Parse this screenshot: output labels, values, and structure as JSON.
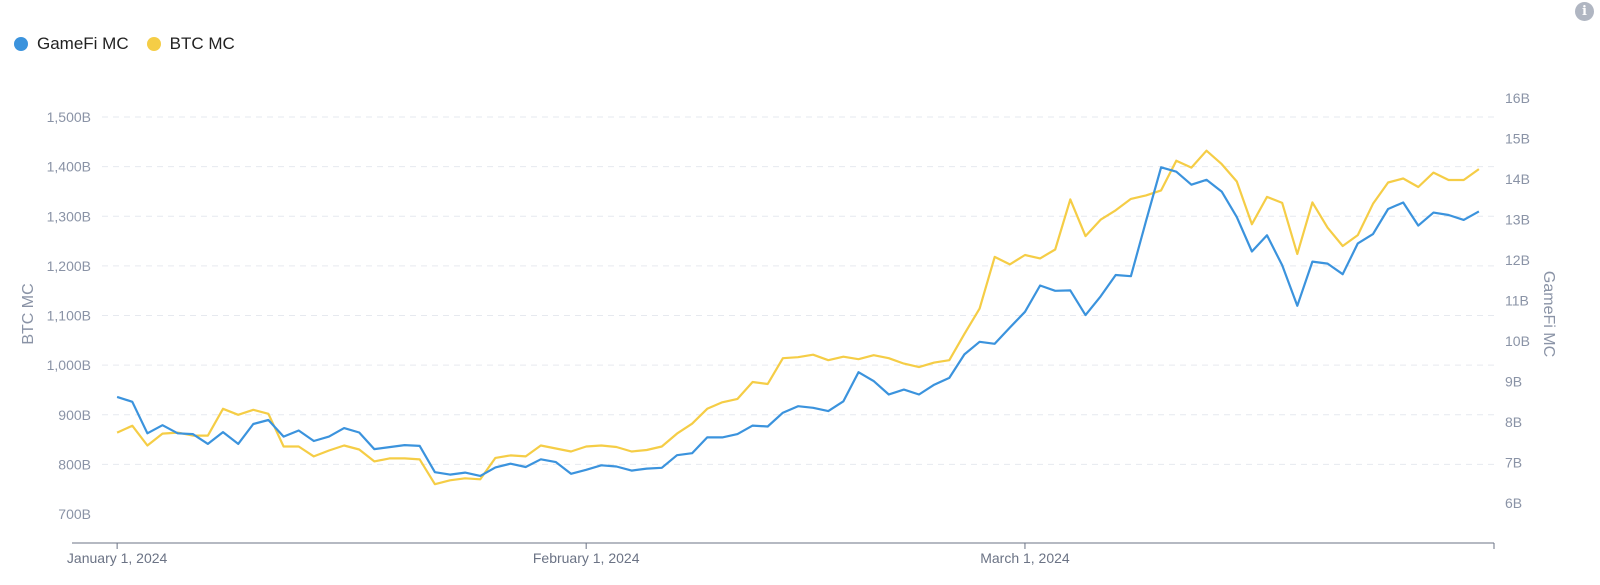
{
  "legend": {
    "gamefi": "GameFi MC",
    "btc": "BTC MC"
  },
  "colors": {
    "gamefi": "#3b93dd",
    "btc": "#f5cd46"
  },
  "icons": {
    "info": "info-icon"
  },
  "chart_data": {
    "type": "line",
    "x_tick_labels": [
      "January 1, 2024",
      "February 1, 2024",
      "March 1, 2024"
    ],
    "x_tick_dates": [
      "2024-01-01",
      "2024-02-01",
      "2024-03-01"
    ],
    "x_start": "2023-12-31",
    "x_end": "2024-04-01",
    "y_left": {
      "label": "BTC MC",
      "ticks": [
        "700B",
        "800B",
        "900B",
        "1,000B",
        "1,100B",
        "1,200B",
        "1,300B",
        "1,400B",
        "1,500B"
      ],
      "range": [
        700,
        1500
      ],
      "unit": "B"
    },
    "y_right": {
      "label": "GameFi MC",
      "ticks": [
        "6B",
        "7B",
        "8B",
        "9B",
        "10B",
        "11B",
        "12B",
        "13B",
        "14B",
        "15B",
        "16B"
      ],
      "range": [
        6,
        16
      ],
      "unit": "B"
    },
    "grid": "horizontal dashed",
    "legend_position": "top-left",
    "series": [
      {
        "name": "GameFi MC",
        "axis": "right",
        "color": "#3b93dd",
        "values": [
          8.62,
          8.5,
          7.72,
          7.92,
          7.72,
          7.7,
          7.46,
          7.75,
          7.46,
          7.95,
          8.05,
          7.64,
          7.79,
          7.53,
          7.64,
          7.85,
          7.74,
          7.33,
          7.38,
          7.43,
          7.41,
          6.76,
          6.7,
          6.75,
          6.67,
          6.88,
          6.97,
          6.89,
          7.08,
          7.01,
          6.72,
          6.82,
          6.93,
          6.9,
          6.8,
          6.85,
          6.87,
          7.18,
          7.23,
          7.62,
          7.62,
          7.7,
          7.91,
          7.89,
          8.23,
          8.39,
          8.35,
          8.27,
          8.51,
          9.23,
          9.01,
          8.68,
          8.8,
          8.68,
          8.92,
          9.09,
          9.67,
          9.98,
          9.93,
          10.33,
          10.72,
          11.37,
          11.24,
          11.25,
          10.64,
          11.1,
          11.63,
          11.6,
          12.96,
          14.29,
          14.18,
          13.86,
          13.98,
          13.69,
          13.06,
          12.21,
          12.61,
          11.87,
          10.87,
          11.96,
          11.91,
          11.65,
          12.41,
          12.64,
          13.26,
          13.42,
          12.85,
          13.17,
          13.11,
          12.99,
          13.2
        ]
      },
      {
        "name": "BTC MC",
        "axis": "left",
        "color": "#f5cd46",
        "values": [
          864,
          878,
          838,
          862,
          864,
          858,
          858,
          912,
          900,
          910,
          902,
          836,
          836,
          816,
          828,
          838,
          830,
          806,
          812,
          812,
          810,
          760,
          768,
          772,
          770,
          813,
          818,
          816,
          838,
          832,
          826,
          836,
          838,
          835,
          826,
          829,
          836,
          862,
          882,
          912,
          925,
          932,
          966,
          962,
          1014,
          1016,
          1021,
          1010,
          1017,
          1012,
          1020,
          1014,
          1003,
          996,
          1005,
          1010,
          1063,
          1114,
          1218,
          1203,
          1222,
          1215,
          1233,
          1334,
          1260,
          1293,
          1312,
          1335,
          1342,
          1352,
          1412,
          1398,
          1432,
          1405,
          1370,
          1284,
          1339,
          1327,
          1224,
          1328,
          1277,
          1240,
          1262,
          1325,
          1368,
          1376,
          1359,
          1388,
          1373,
          1373,
          1395
        ]
      }
    ]
  }
}
